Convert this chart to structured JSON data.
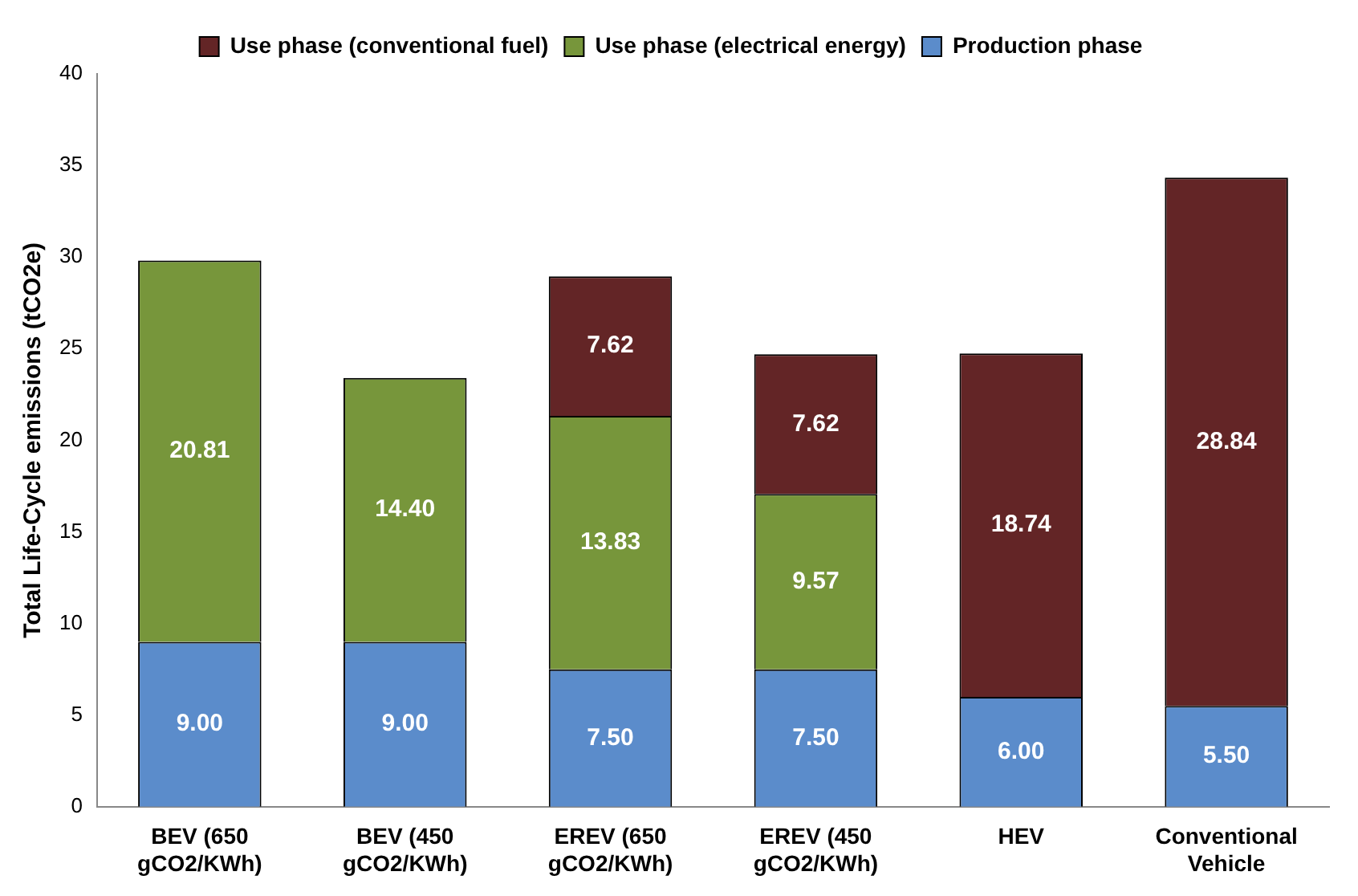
{
  "chart_data": {
    "type": "bar",
    "stacked": true,
    "ylabel": "Total Life-Cycle emissions (tCO2e)",
    "categories": [
      "BEV (650 gCO2/KWh)",
      "BEV (450 gCO2/KWh)",
      "EREV (650 gCO2/KWh)",
      "EREV (450 gCO2/KWh)",
      "HEV",
      "Conventional Vehicle"
    ],
    "series": [
      {
        "name": "Production phase",
        "color": "#5b8ccb",
        "values": [
          9.0,
          9.0,
          7.5,
          7.5,
          6.0,
          5.5
        ],
        "value_labels": [
          "9.00",
          "9.00",
          "7.50",
          "7.50",
          "6.00",
          "5.50"
        ]
      },
      {
        "name": "Use phase (electrical energy)",
        "color": "#77963b",
        "values": [
          20.81,
          14.4,
          13.83,
          9.57,
          null,
          null
        ],
        "value_labels": [
          "20.81",
          "14.40",
          "13.83",
          "9.57",
          null,
          null
        ]
      },
      {
        "name": "Use phase (conventional fuel)",
        "color": "#632526",
        "values": [
          null,
          null,
          7.62,
          7.62,
          18.74,
          28.84
        ],
        "value_labels": [
          null,
          null,
          "7.62",
          "7.62",
          "18.74",
          "28.84"
        ]
      }
    ],
    "ylim": [
      0,
      40
    ],
    "yticks": [
      0,
      5,
      10,
      15,
      20,
      25,
      30,
      35,
      40
    ],
    "grid": false,
    "legend": "top"
  }
}
